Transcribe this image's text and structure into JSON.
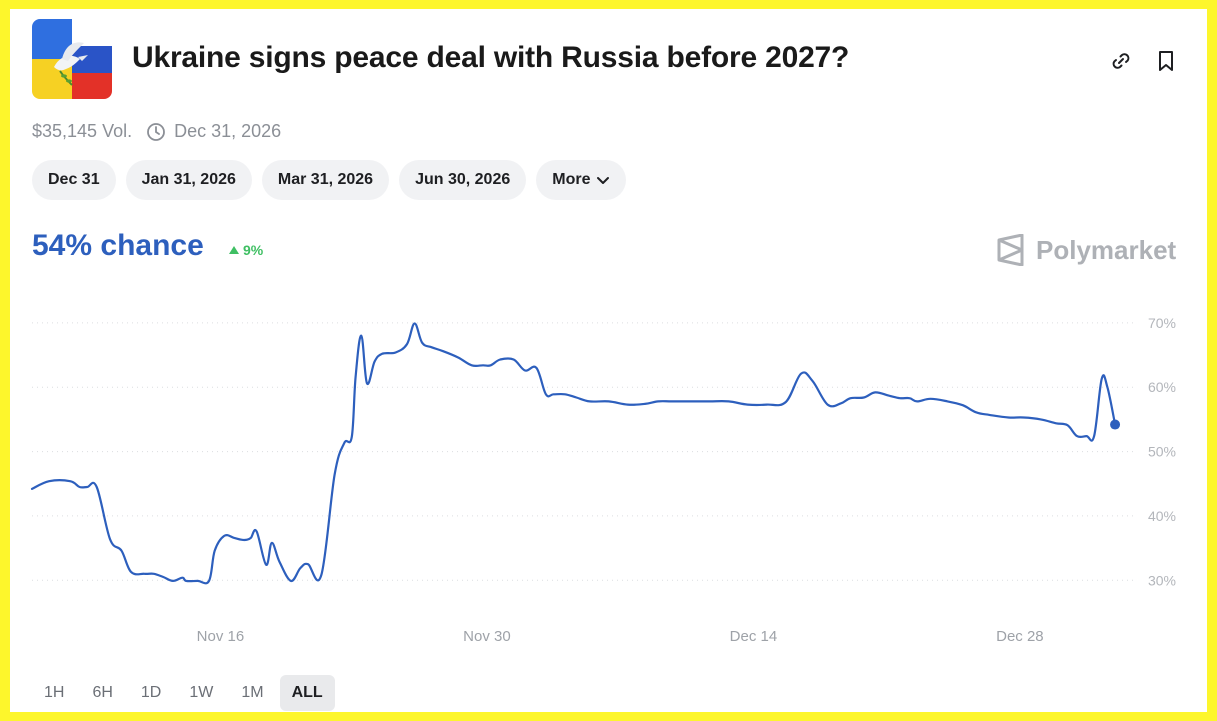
{
  "market": {
    "title": "Ukraine signs peace deal with Russia before 2027?",
    "volume": "$35,145 Vol.",
    "end_date": "Dec 31, 2026",
    "icon": "ukraine-russia-flag-dove-icon"
  },
  "header_actions": {
    "link_icon": "link-icon",
    "bookmark_icon": "bookmark-icon"
  },
  "date_tabs": [
    "Dec 31",
    "Jan 31, 2026",
    "Mar 31, 2026",
    "Jun 30, 2026",
    "More"
  ],
  "odds": {
    "chance": "54% chance",
    "change": "9%",
    "change_direction": "up"
  },
  "brand": {
    "name": "Polymarket",
    "icon": "polymarket-logo-icon"
  },
  "time_ranges": [
    "1H",
    "6H",
    "1D",
    "1W",
    "1M",
    "ALL"
  ],
  "selected_range": "ALL",
  "colors": {
    "accent": "#2d5fbd",
    "up": "#3fbf63",
    "frame": "#fdf62c"
  },
  "chart_data": {
    "type": "line",
    "x_tick_labels": [
      "Nov 16",
      "Nov 30",
      "Dec 14",
      "Dec 28"
    ],
    "y_tick_labels": [
      "70%",
      "60%",
      "50%",
      "40%",
      "30%"
    ],
    "ylim": [
      26,
      72
    ],
    "xlim": [
      0,
      58
    ],
    "grid": true,
    "series": [
      {
        "x": [
          0,
          0.9,
          2,
          2.5,
          2.9,
          3.4,
          4.1,
          4.7,
          5.2,
          5.9,
          6.4,
          6.9,
          7.4,
          7.9,
          8.1,
          8.7,
          9.3,
          9.6,
          10.1,
          10.6,
          11.0,
          11.3,
          11.5,
          11.8,
          12.3,
          12.6,
          13.0,
          13.6,
          14.1,
          14.5,
          15.2,
          15.9,
          16.4,
          16.8,
          17.0,
          17.3,
          17.6,
          18.0,
          18.4,
          19.1,
          19.7,
          20.1,
          20.5,
          21.0,
          21.6,
          22.4,
          23.1,
          23.7,
          24.1,
          24.6,
          25.3,
          25.9,
          26.5,
          27.0,
          27.4,
          28.0,
          28.6,
          29.3,
          30.3,
          31.3,
          32.2,
          32.9,
          33.6,
          34.6,
          35.6,
          36.6,
          37.6,
          38.6,
          39.6,
          40.4,
          41.0,
          41.8,
          42.5,
          43.0,
          43.7,
          44.3,
          45.0,
          45.6,
          46.1,
          46.5,
          47.2,
          48.1,
          48.9,
          49.6,
          50.3,
          51.3,
          52.1,
          53.0,
          53.8,
          54.4,
          54.9,
          55.4,
          55.8,
          56.2,
          56.5,
          56.9
        ],
        "y": [
          44.2,
          45.4,
          45.4,
          44.5,
          44.5,
          44.5,
          36.4,
          34.6,
          31.3,
          31.0,
          31.0,
          30.5,
          29.9,
          30.4,
          29.9,
          29.9,
          29.9,
          34.6,
          36.9,
          36.6,
          36.3,
          36.3,
          36.6,
          37.6,
          32.4,
          35.8,
          32.9,
          29.9,
          31.9,
          32.5,
          30.8,
          46.4,
          51.3,
          52.3,
          61.6,
          68.0,
          60.6,
          64.0,
          65.2,
          65.4,
          66.7,
          69.9,
          66.9,
          66.2,
          65.6,
          64.6,
          63.4,
          63.4,
          63.4,
          64.3,
          64.3,
          62.6,
          63.0,
          58.9,
          58.9,
          58.9,
          58.4,
          57.8,
          57.8,
          57.3,
          57.4,
          57.8,
          57.8,
          57.8,
          57.8,
          57.8,
          57.3,
          57.3,
          57.7,
          62.1,
          61.0,
          57.3,
          57.5,
          58.3,
          58.4,
          59.2,
          58.7,
          58.3,
          58.3,
          57.8,
          58.2,
          57.8,
          57.2,
          56.1,
          55.7,
          55.3,
          55.3,
          55.0,
          54.4,
          54.1,
          52.4,
          52.4,
          52.4,
          61.3,
          60.0,
          54.2
        ]
      }
    ],
    "x_tick_positions": [
      9.9,
      23.9,
      37.9,
      51.9
    ]
  }
}
